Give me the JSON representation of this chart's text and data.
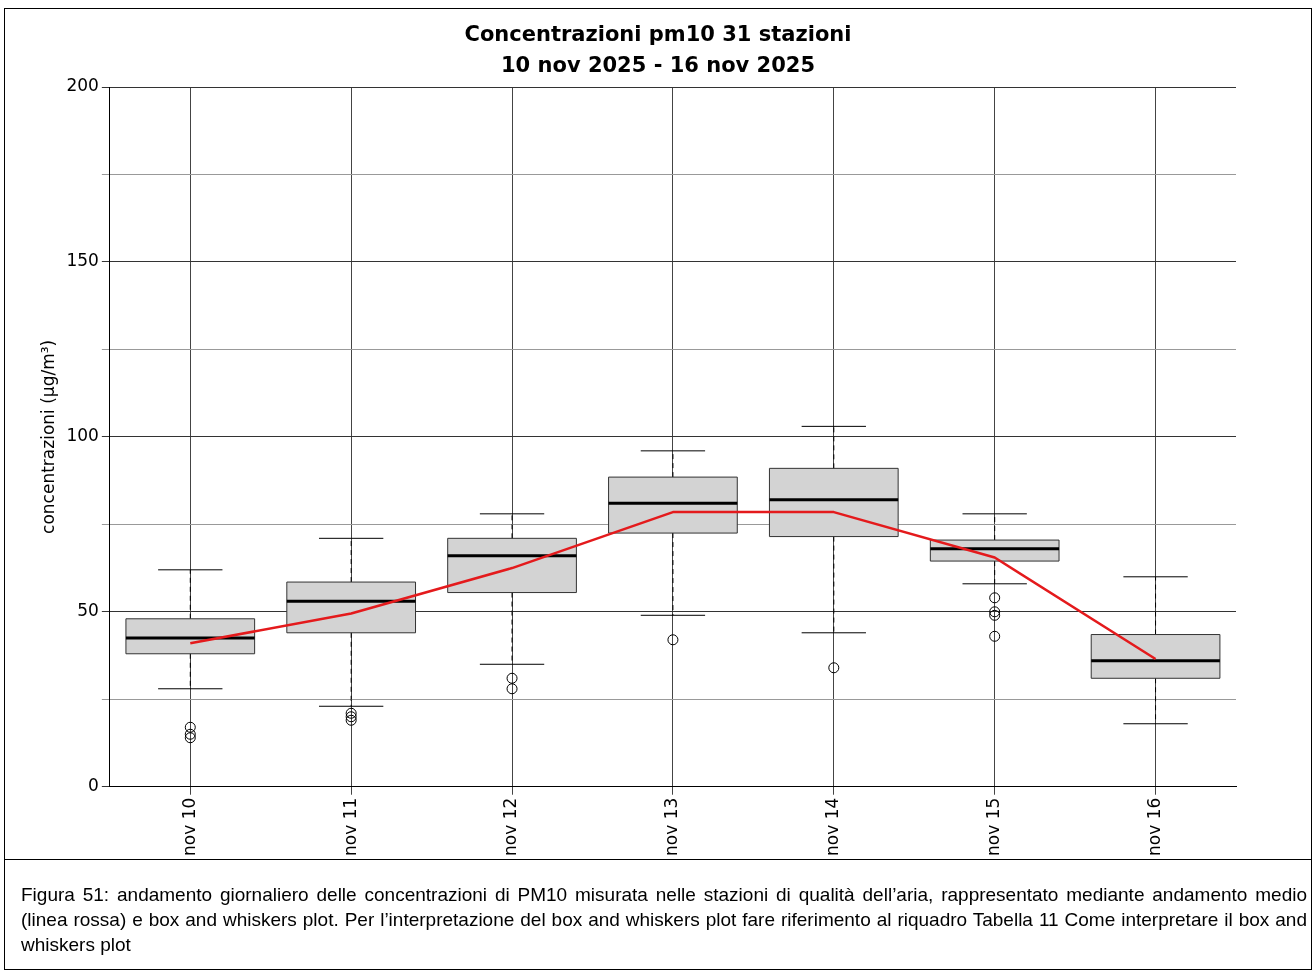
{
  "chart_data": {
    "type": "box",
    "title": "Concentrazioni pm10 31 stazioni",
    "subtitle": "10 nov 2025 - 16 nov 2025",
    "ylabel": "concentrazioni (µg/m³)",
    "categories": [
      "nov 10",
      "nov 11",
      "nov 12",
      "nov 13",
      "nov 14",
      "nov 15",
      "nov 16"
    ],
    "ylim": [
      0,
      200
    ],
    "yticks": [
      0,
      {
        "value": 25,
        "label": null
      },
      50,
      {
        "value": 75,
        "label": null
      },
      100,
      {
        "value": 125,
        "label": null
      },
      150,
      {
        "value": 175,
        "label": null
      },
      200
    ],
    "grid": true,
    "series": [
      {
        "color": "#d3d3d3",
        "boxes": [
          {
            "low": 28,
            "q1": 38,
            "median": 42.5,
            "q3": 48,
            "high": 62,
            "outliers": [
              17,
              15,
              14
            ]
          },
          {
            "low": 23,
            "q1": 44,
            "median": 53,
            "q3": 58.5,
            "high": 71,
            "outliers": [
              21,
              20,
              19
            ]
          },
          {
            "low": 35,
            "q1": 55.5,
            "median": 66,
            "q3": 71,
            "high": 78,
            "outliers": [
              31,
              28
            ]
          },
          {
            "low": 49,
            "q1": 72.5,
            "median": 81,
            "q3": 88.5,
            "high": 96,
            "outliers": [
              42
            ]
          },
          {
            "low": 44,
            "q1": 71.5,
            "median": 82,
            "q3": 91,
            "high": 103,
            "outliers": [
              34
            ]
          },
          {
            "low": 58,
            "q1": 64.5,
            "median": 68,
            "q3": 70.5,
            "high": 78,
            "outliers": [
              54,
              50,
              49,
              43
            ]
          },
          {
            "low": 18,
            "q1": 31,
            "median": 36,
            "q3": 43.5,
            "high": 60
          }
        ]
      },
      {
        "type": "line",
        "color": "#e41a1c",
        "values": [
          41,
          49.5,
          62.5,
          78.5,
          78.5,
          65.5,
          36.5
        ]
      }
    ],
    "annotations": [
      "Figura 51: andamento giornaliero delle concentrazioni di PM10 misurata nelle stazioni di qualità dell’aria, rappresentato mediante andamento medio (linea rossa) e box and whiskers plot. Per l’interpretazione del box and whiskers plot fare riferimento al riquadro Tabella 11 Come interpretare il box and whiskers plot"
    ]
  }
}
